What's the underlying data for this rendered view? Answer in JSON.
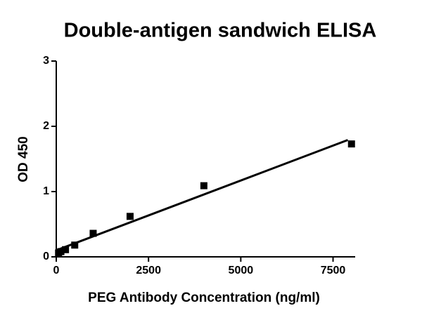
{
  "chart_data": {
    "type": "scatter",
    "title": "Double-antigen sandwich ELISA",
    "x_label": "PEG Antibody Concentration (ng/ml)",
    "y_label": "OD 450",
    "x": [
      62.5,
      125,
      250,
      500,
      1000,
      2000,
      4000,
      8000
    ],
    "values": [
      0.06,
      0.08,
      0.11,
      0.18,
      0.36,
      0.62,
      1.09,
      1.73
    ],
    "color": "#000000",
    "fit": {
      "x": [
        0,
        7900
      ],
      "values": [
        0.1,
        1.79
      ]
    },
    "xlim": [
      0,
      8100
    ],
    "xticks": [
      0,
      2500,
      5000,
      7500
    ],
    "ylim": [
      0,
      3
    ],
    "yticks": [
      0,
      1,
      2,
      3
    ]
  }
}
